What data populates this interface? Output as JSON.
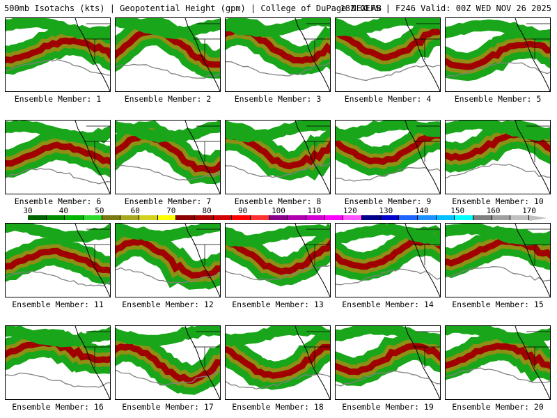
{
  "header": {
    "left": "500mb Isotachs (kts) | Geopotential Height (gpm) | College of DuPage NEXLAB",
    "right": "18Z GEFS | F246 Valid: 00Z WED NOV 26 2025"
  },
  "colorbar": {
    "labels": [
      "30",
      "40",
      "50",
      "60",
      "70",
      "80",
      "90",
      "100",
      "110",
      "120",
      "130",
      "140",
      "150",
      "160",
      "170"
    ],
    "colors": [
      "#006400",
      "#008c00",
      "#00b400",
      "#2ed92e",
      "#7a7a14",
      "#a8a820",
      "#d2d21e",
      "#ffff00",
      "#8b0000",
      "#b00000",
      "#d20000",
      "#ff0000",
      "#ff3030",
      "#8b008b",
      "#b000b0",
      "#d200d2",
      "#ff00ff",
      "#ff55ff",
      "#00008b",
      "#0000cd",
      "#1e64ff",
      "#1e90ff",
      "#00bfff",
      "#00ffff",
      "#808080",
      "#a0a0a0",
      "#c0c0c0"
    ]
  },
  "colors": {
    "jet_weak": "#1aa61a",
    "jet_mid": "#8f8f16",
    "jet_strong": "#a00000",
    "height_contour": "#808080",
    "coastline": "#000000"
  },
  "members": [
    {
      "caption": "Ensemble Member: 1"
    },
    {
      "caption": "Ensemble Member: 2"
    },
    {
      "caption": "Ensemble Member: 3"
    },
    {
      "caption": "Ensemble Member: 4"
    },
    {
      "caption": "Ensemble Member: 5"
    },
    {
      "caption": "Ensemble Member: 6"
    },
    {
      "caption": "Ensemble Member: 7"
    },
    {
      "caption": "Ensemble Member: 8"
    },
    {
      "caption": "Ensemble Member: 9"
    },
    {
      "caption": "Ensemble Member: 10"
    },
    {
      "caption": "Ensemble Member: 11"
    },
    {
      "caption": "Ensemble Member: 12"
    },
    {
      "caption": "Ensemble Member: 13"
    },
    {
      "caption": "Ensemble Member: 14"
    },
    {
      "caption": "Ensemble Member: 15"
    },
    {
      "caption": "Ensemble Member: 16"
    },
    {
      "caption": "Ensemble Member: 17"
    },
    {
      "caption": "Ensemble Member: 18"
    },
    {
      "caption": "Ensemble Member: 19"
    },
    {
      "caption": "Ensemble Member: 20"
    }
  ]
}
